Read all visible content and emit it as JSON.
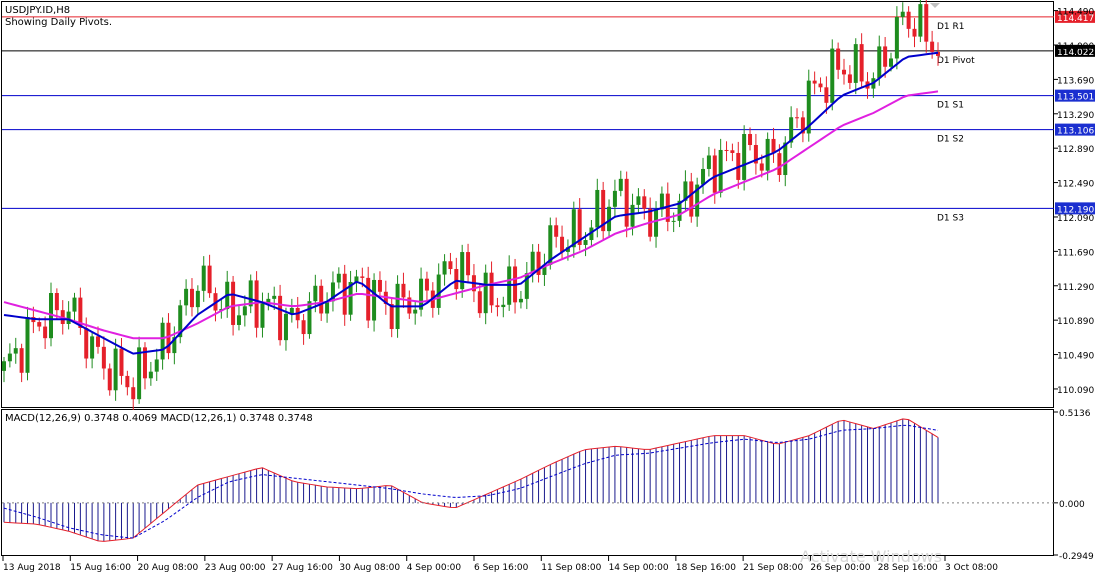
{
  "header": {
    "symbol_line": "USDJPY.ID,H8",
    "pivot_line": "Showing Daily Pivots."
  },
  "pivots": [
    {
      "label": "D1 R1",
      "value": "114.417",
      "level": 114.417,
      "color": "#e5202a",
      "badge": "#e5202a"
    },
    {
      "label": "D1 Pivot",
      "value": "114.022",
      "level": 114.022,
      "color": "#000000",
      "badge": "#000000"
    },
    {
      "label": "D1 S1",
      "value": "113.501",
      "level": 113.501,
      "color": "#0000cc",
      "badge": "#1b2fd0"
    },
    {
      "label": "D1 S2",
      "value": "113.106",
      "level": 113.106,
      "color": "#0000cc",
      "badge": "#1b2fd0"
    },
    {
      "label": "D1 S3",
      "value": "112.190",
      "level": 112.19,
      "color": "#0000cc",
      "badge": "#1b2fd0"
    }
  ],
  "price_ticks": [
    "114.490",
    "114.090",
    "113.690",
    "113.290",
    "112.890",
    "112.490",
    "112.090",
    "111.690",
    "111.290",
    "110.890",
    "110.490",
    "110.090"
  ],
  "x_ticks": [
    "13 Aug 2018",
    "15 Aug 16:00",
    "20 Aug 08:00",
    "23 Aug 00:00",
    "27 Aug 16:00",
    "30 Aug 08:00",
    "4 Sep 00:00",
    "6 Sep 16:00",
    "11 Sep 08:00",
    "14 Sep 00:00",
    "18 Sep 16:00",
    "21 Sep 08:00",
    "26 Sep 00:00",
    "28 Sep 16:00",
    "3 Oct 08:00"
  ],
  "macd": {
    "label": "MACD(12,26,9) 0.3748 0.4069 MACD(12,26,1) 0.3748 0.3748",
    "ticks": [
      "0.5136",
      "0.000",
      "-0.2949"
    ]
  },
  "watermark": "Activate Windows",
  "colors": {
    "bull": "#1e8c1e",
    "bear": "#e5202a",
    "ma_fast": "#0000cc",
    "ma_slow": "#e020e0",
    "macd_hist": "#1a1a8c",
    "macd_line": "#e5202a",
    "macd_signal": "#0000cc"
  },
  "chart_data": {
    "type": "candlestick",
    "symbol": "USDJPY.ID",
    "timeframe": "H8",
    "ylim": [
      109.88,
      114.59
    ],
    "close_trend": [
      110.3,
      110.85,
      111.05,
      110.4,
      110.15,
      110.6,
      111.35,
      111.0,
      111.1,
      110.85,
      111.2,
      111.3,
      111.05,
      111.15,
      111.55,
      111.1,
      111.25,
      111.8,
      111.9,
      112.35,
      112.1,
      112.2,
      112.7,
      112.85,
      112.75,
      113.5,
      113.85,
      113.7,
      114.45,
      114.05
    ],
    "ma_fast_trend": [
      110.95,
      110.9,
      110.9,
      110.7,
      110.5,
      110.55,
      110.95,
      111.2,
      111.1,
      110.95,
      111.1,
      111.35,
      111.05,
      111.05,
      111.35,
      111.3,
      111.3,
      111.6,
      111.85,
      112.1,
      112.15,
      112.25,
      112.55,
      112.7,
      112.85,
      113.15,
      113.5,
      113.65,
      113.95,
      114.0
    ],
    "ma_slow_trend": [
      111.1,
      111.0,
      110.9,
      110.78,
      110.68,
      110.68,
      110.85,
      111.05,
      111.1,
      111.05,
      111.1,
      111.2,
      111.15,
      111.1,
      111.2,
      111.3,
      111.38,
      111.55,
      111.7,
      111.9,
      112.02,
      112.12,
      112.35,
      112.5,
      112.65,
      112.9,
      113.15,
      113.3,
      113.5,
      113.55
    ],
    "macd_trend": [
      -0.11,
      -0.12,
      -0.16,
      -0.22,
      -0.2,
      -0.05,
      0.1,
      0.15,
      0.2,
      0.12,
      0.09,
      0.08,
      0.1,
      0.0,
      -0.03,
      0.05,
      0.13,
      0.22,
      0.3,
      0.32,
      0.3,
      0.34,
      0.38,
      0.38,
      0.33,
      0.38,
      0.47,
      0.42,
      0.48,
      0.37
    ],
    "macd_signal_trend": [
      -0.03,
      -0.08,
      -0.14,
      -0.18,
      -0.2,
      -0.1,
      0.03,
      0.12,
      0.16,
      0.14,
      0.12,
      0.1,
      0.08,
      0.05,
      0.03,
      0.04,
      0.08,
      0.15,
      0.22,
      0.27,
      0.28,
      0.31,
      0.34,
      0.36,
      0.34,
      0.36,
      0.41,
      0.42,
      0.44,
      0.41
    ]
  }
}
